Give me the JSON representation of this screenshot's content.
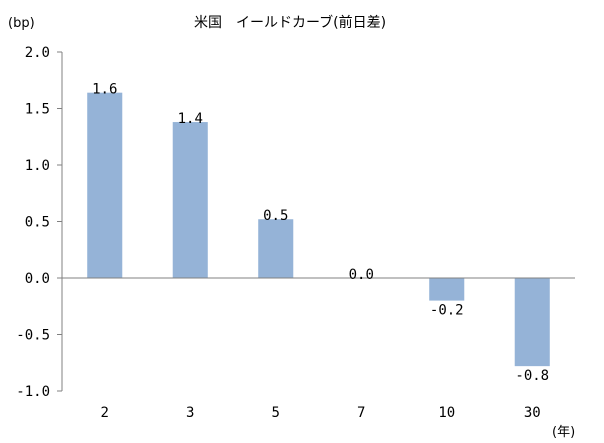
{
  "chart_data": {
    "type": "bar",
    "title": "米国　イールドカーブ(前日差)",
    "ylabel": "(bp)",
    "xlabel": "(年)",
    "categories": [
      "2",
      "3",
      "5",
      "7",
      "10",
      "30"
    ],
    "values": [
      1.64,
      1.38,
      0.52,
      0.0,
      -0.2,
      -0.78
    ],
    "data_labels": [
      "1.6",
      "1.4",
      "0.5",
      "0.0",
      "-0.2",
      "-0.8"
    ],
    "yticks": [
      "2.0",
      "1.5",
      "1.0",
      "0.5",
      "0.0",
      "-0.5",
      "-1.0"
    ],
    "ylim": [
      -1.0,
      2.0
    ],
    "grid": false,
    "bar_color": "#95b3d7",
    "axis_color": "#808080"
  }
}
